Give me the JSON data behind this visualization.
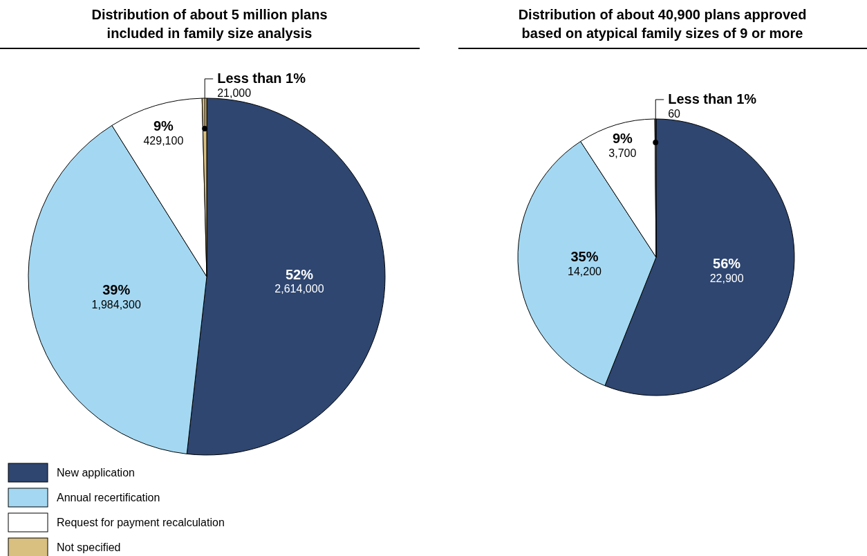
{
  "chart_data": [
    {
      "type": "pie",
      "title": "Distribution of about 5 million plans included in family size analysis",
      "categories": [
        "New application",
        "Annual recertification",
        "Request for payment recalculation",
        "Not specified"
      ],
      "values": [
        2614000,
        1984300,
        429100,
        21000
      ],
      "colors": [
        "#2e4670",
        "#a4d8f2",
        "#ffffff",
        "#d9bf80"
      ],
      "value_labels": [
        "52%\n2,614,000",
        "39%\n1,984,300",
        "9%\n429,100",
        "Less than 1%\n21,000"
      ],
      "legend": "bottom left"
    },
    {
      "type": "pie",
      "title": "Distribution of about 40,900 plans approved based on atypical family sizes of 9 or more",
      "categories": [
        null,
        null,
        null,
        null
      ],
      "values": [
        22900,
        14200,
        3700,
        60
      ],
      "colors": [
        "#2e4670",
        "#a4d8f2",
        "#ffffff",
        "#d9bf80"
      ],
      "value_labels": [
        "56%\n22,900",
        "35%\n14,200",
        "9%\n3,700",
        "Less than 1%\n60"
      ]
    }
  ]
}
